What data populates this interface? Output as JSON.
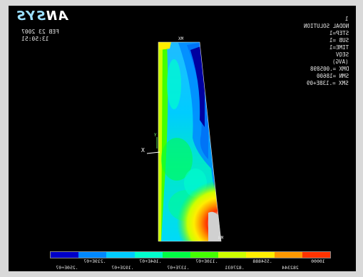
{
  "logo": {
    "text_a": "AN",
    "text_b": "SYS"
  },
  "date": {
    "line1": "FEB 23 2007",
    "line2": "13:50:51"
  },
  "info": {
    "num": "1",
    "title": "NODAL SOLUTION",
    "step": "STEP=1",
    "sub": "SUB =1",
    "time": "TIME=1",
    "comp": "SEQV",
    "avg": "(AVG)",
    "dmx": "DMX =.005898",
    "smn": "SMN =18600",
    "smx": "SMX =.138E+09"
  },
  "plot": {
    "mx_label": "MX",
    "mn_label": "MN",
    "axis_x": "X",
    "axis_y": "Y"
  },
  "legend": {
    "colors": [
      "#0000c8",
      "#0088ff",
      "#00ccff",
      "#00ffcc",
      "#00ff44",
      "#44ff00",
      "#ccff00",
      "#ffee00",
      "#ff9900",
      "#ff3300"
    ],
    "top_labels": [
      "10000",
      ".554888",
      ".110E+07",
      ".164E+07",
      ".219E+07"
    ],
    "bottom_labels": [
      "282344",
      ".827031",
      ".137E+07",
      ".192E+07",
      ".250E+07"
    ]
  }
}
